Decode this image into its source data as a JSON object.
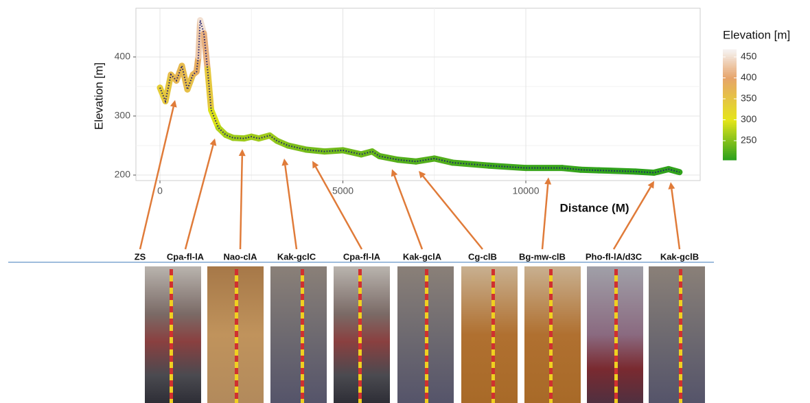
{
  "chart_data": {
    "type": "line",
    "x_label": "Distance (M)",
    "y_label": "Elevation [m]",
    "xlim": [
      -657,
      14765
    ],
    "ylim": [
      190.7,
      482.5
    ],
    "xticks": [
      0,
      5000,
      10000
    ],
    "yticks": [
      200,
      300,
      400
    ],
    "grid": true,
    "x": [
      0,
      150,
      300,
      450,
      600,
      750,
      900,
      1000,
      1050,
      1100,
      1200,
      1300,
      1400,
      1600,
      1800,
      2000,
      2300,
      2500,
      2700,
      3000,
      3200,
      3500,
      4000,
      4500,
      5000,
      5500,
      5800,
      6000,
      6500,
      7000,
      7500,
      8000,
      9000,
      10000,
      11000,
      11500,
      12000,
      13000,
      13500,
      13900,
      14200
    ],
    "values": [
      348,
      325,
      370,
      360,
      385,
      345,
      370,
      375,
      400,
      462,
      440,
      380,
      310,
      280,
      268,
      263,
      262,
      265,
      262,
      267,
      258,
      250,
      243,
      240,
      242,
      235,
      240,
      232,
      226,
      223,
      228,
      221,
      216,
      212,
      212,
      209,
      208,
      206,
      204,
      210,
      205
    ],
    "color_legend": {
      "title": "Elevation [m]",
      "lim": [
        204,
        468
      ],
      "ticks": [
        250,
        300,
        350,
        400,
        450
      ],
      "stops": [
        205,
        300,
        400,
        465
      ],
      "colors": [
        "#2ca01c",
        "#e5e51a",
        "#e6a46a",
        "#f5f0ee"
      ]
    },
    "line_color": "#1a1a6e",
    "annotations": [
      {
        "label": "ZS",
        "x": 413,
        "y": 334
      },
      {
        "label": "Cpa-fl-lA",
        "x": 1501,
        "y": 269
      },
      {
        "label": "Nao-clA",
        "x": 2251,
        "y": 251
      },
      {
        "label": "Kak-gclC",
        "x": 3396,
        "y": 235
      },
      {
        "label": "Cpa-fl-lA",
        "x": 4165,
        "y": 231
      },
      {
        "label": "Kak-gclA",
        "x": 6341,
        "y": 217
      },
      {
        "label": "Cg-clB",
        "x": 7073,
        "y": 214
      },
      {
        "label": "Bg-mw-clB",
        "x": 10619,
        "y": 203
      },
      {
        "label": "Pho-fl-lA/d3C",
        "x": 13508,
        "y": 197
      },
      {
        "label": "Kak-gclB",
        "x": 13959,
        "y": 195
      }
    ],
    "arrow_color": "#e07b39"
  }
}
